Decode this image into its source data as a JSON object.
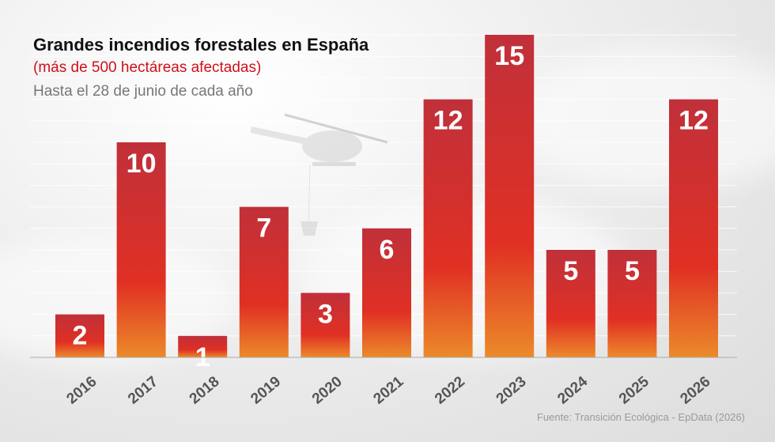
{
  "header": {
    "title": "Grandes incendios forestales en España",
    "subtitle": "(más de 500 hectáreas afectadas)",
    "subtitle2": "Hasta el 28 de junio de cada año"
  },
  "footer": {
    "source": "Fuente: Transición Ecológica - EpData (2026)"
  },
  "colors": {
    "bar_top": "#c0303a",
    "bar_mid": "#e03024",
    "bar_bottom": "#ec8a2a",
    "subtitle": "#d0101a"
  },
  "chart_data": {
    "type": "bar",
    "title": "Grandes incendios forestales en España",
    "subtitle": "(más de 500 hectáreas afectadas)",
    "categories": [
      "2016",
      "2017",
      "2018",
      "2019",
      "2020",
      "2021",
      "2022",
      "2023",
      "2024",
      "2025",
      "2026"
    ],
    "values": [
      2,
      10,
      1,
      7,
      3,
      6,
      12,
      15,
      5,
      5,
      12
    ],
    "ylim": [
      0,
      15
    ],
    "grid": true,
    "legend": "none"
  }
}
